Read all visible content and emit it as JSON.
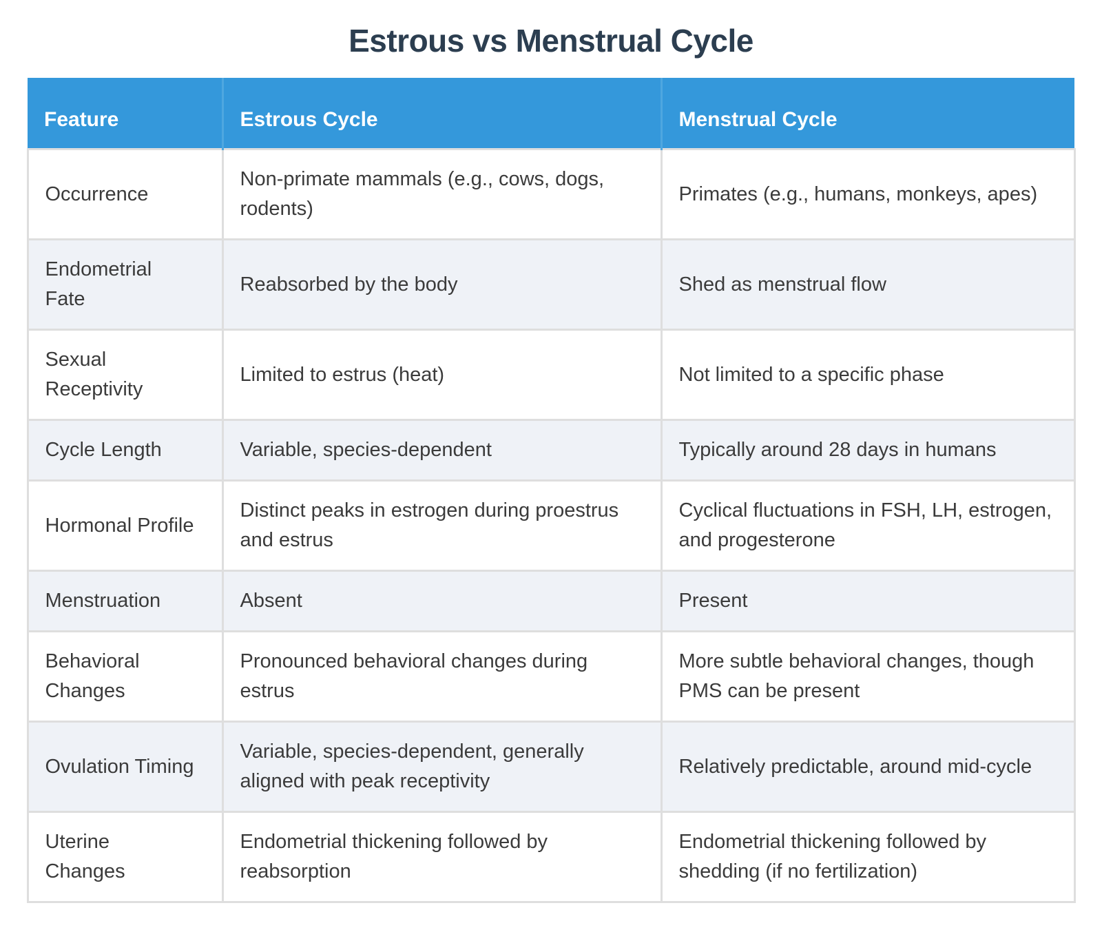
{
  "page": {
    "title": "Estrous vs Menstrual Cycle"
  },
  "theme": {
    "title_color": "#2c3e50",
    "header_bg": "#3498db",
    "header_text": "#ffffff",
    "header_divider": "#4ea7e0",
    "zebra_row_bg": "#eff2f7",
    "border_color": "#dedede",
    "cell_text": "#3b3b3b"
  },
  "table": {
    "header": {
      "columns": [
        "Feature",
        "Estrous Cycle",
        "Menstrual Cycle"
      ]
    },
    "rows": [
      {
        "feature": "Occurrence",
        "estrous": "Non-primate mammals (e.g., cows, dogs, rodents)",
        "menstrual": "Primates (e.g., humans, monkeys, apes)"
      },
      {
        "feature": "Endometrial\nFate",
        "estrous": "Reabsorbed by the body",
        "menstrual": "Shed as menstrual flow"
      },
      {
        "feature": "Sexual\nReceptivity",
        "estrous": "Limited to estrus (heat)",
        "menstrual": "Not limited to a specific phase"
      },
      {
        "feature": "Cycle Length",
        "estrous": "Variable, species-dependent",
        "menstrual": "Typically around 28 days in humans"
      },
      {
        "feature": "Hormonal Profile",
        "estrous": "Distinct peaks in estrogen during proestrus and estrus",
        "menstrual": "Cyclical fluctuations in FSH, LH, estrogen, and progesterone"
      },
      {
        "feature": "Menstruation",
        "estrous": "Absent",
        "menstrual": "Present"
      },
      {
        "feature": "Behavioral\nChanges",
        "estrous": "Pronounced behavioral changes during estrus",
        "menstrual": "More subtle behavioral changes, though PMS can be present"
      },
      {
        "feature": "Ovulation Timing",
        "estrous": "Variable, species-dependent, generally aligned with peak receptivity",
        "menstrual": "Relatively predictable, around mid-cycle"
      },
      {
        "feature": "Uterine\nChanges",
        "estrous": "Endometrial thickening followed by reabsorption",
        "menstrual": "Endometrial thickening followed by shedding (if no fertilization)"
      }
    ]
  }
}
